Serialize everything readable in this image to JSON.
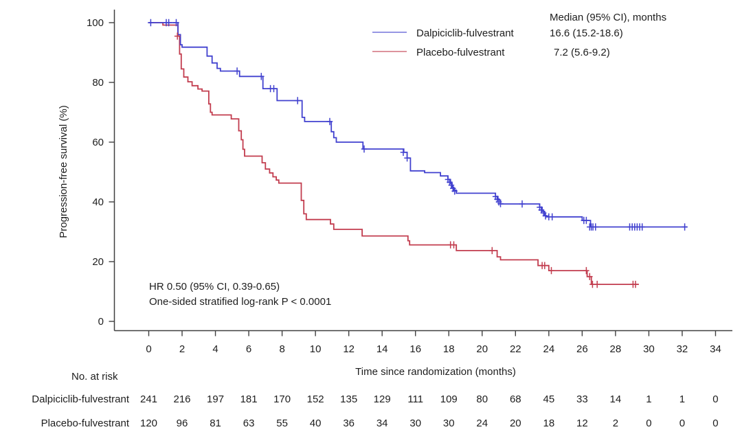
{
  "chart_data": {
    "type": "line",
    "variant": "kaplan_meier_step",
    "title": "",
    "xlabel": "Time since randomization (months)",
    "ylabel": "Progression-free survival (%)",
    "xlim": [
      0,
      34
    ],
    "ylim": [
      0,
      100
    ],
    "grid": false,
    "xticks": [
      0,
      2,
      4,
      6,
      8,
      10,
      12,
      14,
      16,
      18,
      20,
      22,
      24,
      26,
      28,
      30,
      32,
      34
    ],
    "yticks": [
      0,
      20,
      40,
      60,
      80,
      100
    ],
    "annotations": [
      "HR 0.50 (95% CI, 0.39-0.65)",
      "One-sided stratified log-rank P < 0.0001"
    ],
    "legend": {
      "position": "top-right",
      "header": "Median (95% CI), months"
    },
    "series": [
      {
        "name": "Dalpiciclib-fulvestrant",
        "median_ci": "16.6 (15.2-18.6)",
        "color": "#4141cf",
        "points": [
          [
            0,
            100
          ],
          [
            1.7,
            100
          ],
          [
            1.75,
            96
          ],
          [
            1.9,
            92.6
          ],
          [
            2.0,
            91.8
          ],
          [
            3.4,
            91.8
          ],
          [
            3.5,
            88.8
          ],
          [
            3.8,
            86.5
          ],
          [
            4.1,
            84.7
          ],
          [
            4.3,
            83.8
          ],
          [
            5.3,
            83.8
          ],
          [
            5.45,
            82.0
          ],
          [
            6.75,
            82.0
          ],
          [
            6.85,
            77.9
          ],
          [
            7.6,
            77.9
          ],
          [
            7.7,
            73.9
          ],
          [
            9.1,
            73.9
          ],
          [
            9.2,
            68.3
          ],
          [
            9.35,
            66.9
          ],
          [
            10.86,
            66.9
          ],
          [
            10.95,
            63.5
          ],
          [
            11.1,
            61.5
          ],
          [
            11.25,
            60.0
          ],
          [
            12.7,
            60.0
          ],
          [
            12.85,
            57.7
          ],
          [
            15.2,
            57.7
          ],
          [
            15.3,
            56.6
          ],
          [
            15.5,
            54.7
          ],
          [
            15.7,
            50.4
          ],
          [
            16.45,
            50.4
          ],
          [
            16.55,
            49.8
          ],
          [
            17.4,
            49.8
          ],
          [
            17.5,
            48.7
          ],
          [
            17.95,
            47.5
          ],
          [
            18.1,
            46.2
          ],
          [
            18.2,
            44.9
          ],
          [
            18.3,
            43.9
          ],
          [
            18.45,
            42.9
          ],
          [
            20.7,
            42.9
          ],
          [
            20.8,
            41.8
          ],
          [
            20.95,
            40.6
          ],
          [
            21.1,
            39.3
          ],
          [
            23.35,
            39.3
          ],
          [
            23.45,
            38.2
          ],
          [
            23.6,
            36.8
          ],
          [
            23.75,
            35.4
          ],
          [
            23.85,
            35.0
          ],
          [
            25.9,
            35.0
          ],
          [
            26.0,
            33.8
          ],
          [
            26.4,
            33.8
          ],
          [
            26.5,
            31.6
          ],
          [
            32.3,
            31.6
          ]
        ],
        "censors": [
          [
            0.12,
            100
          ],
          [
            1.05,
            100
          ],
          [
            1.2,
            100
          ],
          [
            1.65,
            100
          ],
          [
            5.3,
            83.8
          ],
          [
            6.75,
            82.0
          ],
          [
            7.3,
            77.9
          ],
          [
            7.5,
            77.9
          ],
          [
            8.93,
            73.9
          ],
          [
            10.86,
            66.9
          ],
          [
            12.92,
            57.7
          ],
          [
            15.27,
            56.6
          ],
          [
            15.5,
            54.7
          ],
          [
            17.95,
            47.5
          ],
          [
            18.05,
            46.6
          ],
          [
            18.15,
            45.6
          ],
          [
            18.25,
            44.5
          ],
          [
            18.35,
            43.6
          ],
          [
            20.8,
            41.8
          ],
          [
            20.9,
            40.9
          ],
          [
            21.0,
            40.0
          ],
          [
            21.1,
            39.4
          ],
          [
            22.4,
            39.3
          ],
          [
            23.45,
            38.2
          ],
          [
            23.55,
            37.3
          ],
          [
            23.68,
            36.3
          ],
          [
            23.8,
            35.3
          ],
          [
            24.0,
            35.0
          ],
          [
            24.2,
            35.0
          ],
          [
            26.1,
            33.8
          ],
          [
            26.25,
            33.8
          ],
          [
            26.45,
            31.6
          ],
          [
            26.55,
            31.6
          ],
          [
            26.65,
            31.6
          ],
          [
            26.8,
            31.6
          ],
          [
            28.85,
            31.6
          ],
          [
            29.0,
            31.6
          ],
          [
            29.15,
            31.6
          ],
          [
            29.3,
            31.6
          ],
          [
            29.45,
            31.6
          ],
          [
            29.6,
            31.6
          ],
          [
            32.15,
            31.6
          ]
        ]
      },
      {
        "name": "Placebo-fulvestrant",
        "median_ci": "7.2 (5.6-9.2)",
        "color": "#c23c4e",
        "points": [
          [
            0,
            100
          ],
          [
            0.8,
            100
          ],
          [
            0.85,
            99.2
          ],
          [
            1.65,
            99.2
          ],
          [
            1.75,
            95.5
          ],
          [
            1.85,
            89.5
          ],
          [
            1.95,
            84.5
          ],
          [
            2.1,
            81.8
          ],
          [
            2.35,
            80.2
          ],
          [
            2.6,
            78.9
          ],
          [
            2.95,
            77.8
          ],
          [
            3.2,
            77.1
          ],
          [
            3.5,
            77.1
          ],
          [
            3.6,
            72.8
          ],
          [
            3.7,
            70.0
          ],
          [
            3.8,
            69.1
          ],
          [
            4.85,
            69.1
          ],
          [
            4.95,
            67.8
          ],
          [
            5.3,
            67.8
          ],
          [
            5.4,
            63.8
          ],
          [
            5.55,
            60.8
          ],
          [
            5.65,
            57.6
          ],
          [
            5.75,
            55.3
          ],
          [
            6.7,
            55.3
          ],
          [
            6.8,
            53.1
          ],
          [
            7.0,
            51.0
          ],
          [
            7.25,
            49.7
          ],
          [
            7.45,
            48.4
          ],
          [
            7.65,
            47.3
          ],
          [
            7.8,
            46.3
          ],
          [
            9.05,
            46.3
          ],
          [
            9.15,
            40.5
          ],
          [
            9.3,
            36.0
          ],
          [
            9.45,
            34.1
          ],
          [
            10.8,
            34.1
          ],
          [
            10.9,
            32.6
          ],
          [
            11.1,
            30.8
          ],
          [
            12.7,
            30.8
          ],
          [
            12.8,
            28.6
          ],
          [
            15.45,
            28.6
          ],
          [
            15.55,
            27.0
          ],
          [
            15.65,
            25.6
          ],
          [
            18.3,
            25.6
          ],
          [
            18.45,
            23.7
          ],
          [
            20.75,
            23.7
          ],
          [
            20.9,
            21.6
          ],
          [
            21.1,
            20.6
          ],
          [
            23.2,
            20.6
          ],
          [
            23.35,
            18.7
          ],
          [
            23.9,
            18.7
          ],
          [
            24.0,
            17.0
          ],
          [
            26.2,
            17.0
          ],
          [
            26.3,
            15.0
          ],
          [
            26.55,
            12.4
          ],
          [
            29.4,
            12.4
          ]
        ],
        "censors": [
          [
            1.72,
            95.5
          ],
          [
            18.1,
            25.6
          ],
          [
            18.3,
            25.6
          ],
          [
            20.6,
            23.7
          ],
          [
            23.6,
            18.7
          ],
          [
            23.75,
            18.7
          ],
          [
            24.15,
            17.0
          ],
          [
            26.25,
            17.0
          ],
          [
            26.45,
            15.0
          ],
          [
            26.62,
            12.4
          ],
          [
            26.9,
            12.4
          ],
          [
            29.05,
            12.4
          ],
          [
            29.2,
            12.4
          ]
        ]
      }
    ],
    "risk_table": {
      "title": "No. at risk",
      "times": [
        0,
        2,
        4,
        6,
        8,
        10,
        12,
        14,
        16,
        18,
        20,
        22,
        24,
        26,
        28,
        30,
        32,
        34
      ],
      "rows": [
        {
          "label": "Dalpiciclib-fulvestrant",
          "counts": [
            241,
            216,
            197,
            181,
            170,
            152,
            135,
            129,
            111,
            109,
            80,
            68,
            45,
            33,
            14,
            1,
            1,
            0
          ]
        },
        {
          "label": "Placebo-fulvestrant",
          "counts": [
            120,
            96,
            81,
            63,
            55,
            40,
            36,
            34,
            30,
            30,
            24,
            20,
            18,
            12,
            2,
            0,
            0,
            0
          ]
        }
      ]
    }
  }
}
